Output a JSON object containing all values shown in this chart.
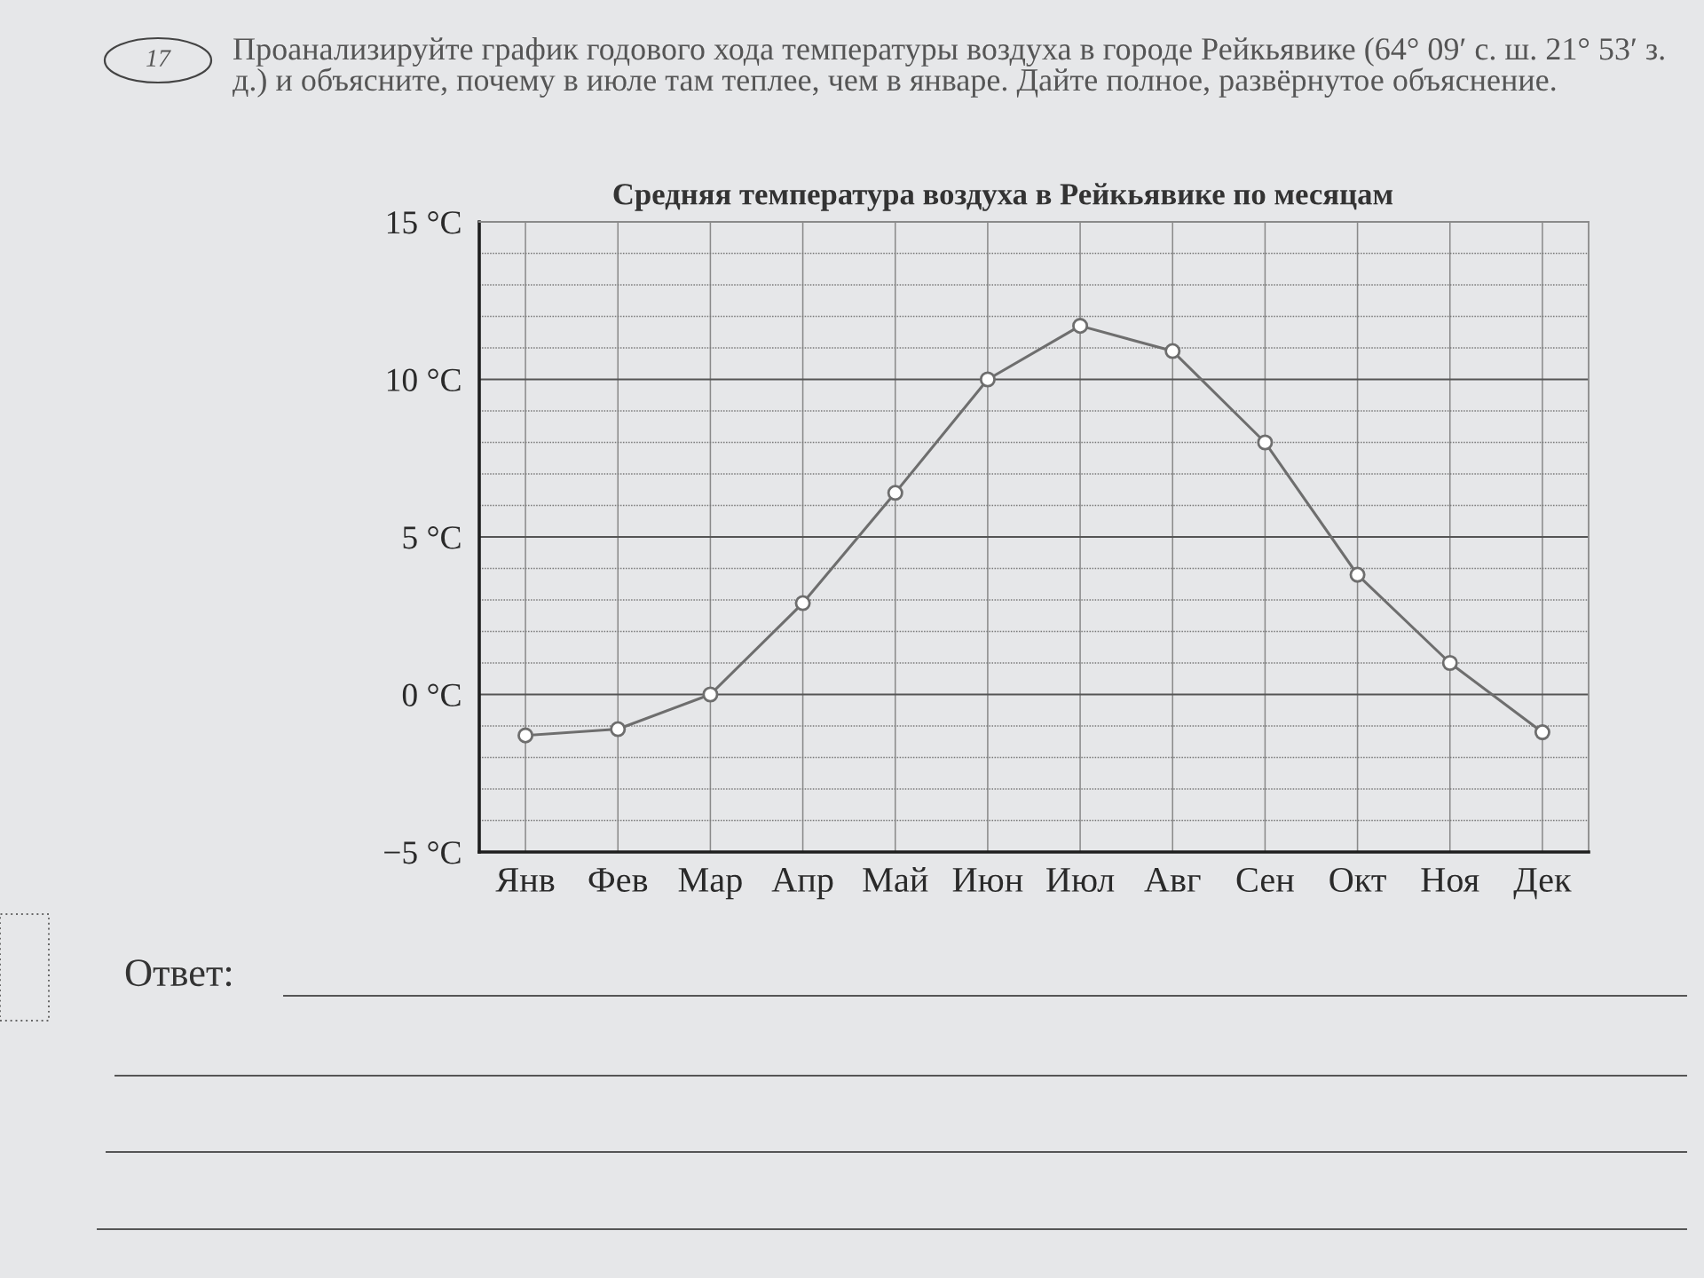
{
  "chart_data": {
    "type": "line",
    "title": "Средняя температура воздуха в Рейкьявике по месяцам",
    "annotations": [
      "17",
      "Проанализируйте график годового хода температуры воздуха в городе Рейкьявике (64° 09′ с. ш. 21° 53′ з. д.) и объясните, почему в июле там теплее, чем в январе. Дайте полное, развёрнутое объяснение.",
      "Ответ:"
    ],
    "categories": [
      "Янв",
      "Фев",
      "Мар",
      "Апр",
      "Май",
      "Июн",
      "Июл",
      "Авг",
      "Сен",
      "Окт",
      "Ноя",
      "Дек"
    ],
    "values": [
      -1.3,
      -1.1,
      0.0,
      2.9,
      6.4,
      10.0,
      11.7,
      10.9,
      8.0,
      3.8,
      1.0,
      -1.2
    ],
    "color": "#6e6e6e",
    "ylim": [
      -5,
      15
    ],
    "yticks": [
      {
        "value": -5,
        "label": "−5 °C"
      },
      {
        "value": -4,
        "label": null
      },
      {
        "value": -3,
        "label": null
      },
      {
        "value": -2,
        "label": null
      },
      {
        "value": -1,
        "label": null
      },
      {
        "value": 0,
        "label": "0 °C"
      },
      {
        "value": 1,
        "label": null
      },
      {
        "value": 2,
        "label": null
      },
      {
        "value": 3,
        "label": null
      },
      {
        "value": 4,
        "label": null
      },
      {
        "value": 5,
        "label": "5 °C"
      },
      {
        "value": 6,
        "label": null
      },
      {
        "value": 7,
        "label": null
      },
      {
        "value": 8,
        "label": null
      },
      {
        "value": 9,
        "label": null
      },
      {
        "value": 10,
        "label": "10 °C"
      },
      {
        "value": 11,
        "label": null
      },
      {
        "value": 12,
        "label": null
      },
      {
        "value": 13,
        "label": null
      },
      {
        "value": 14,
        "label": null
      },
      {
        "value": 15,
        "label": "15 °C"
      }
    ],
    "grid": true,
    "marker": "circle",
    "line_style": "solid"
  }
}
